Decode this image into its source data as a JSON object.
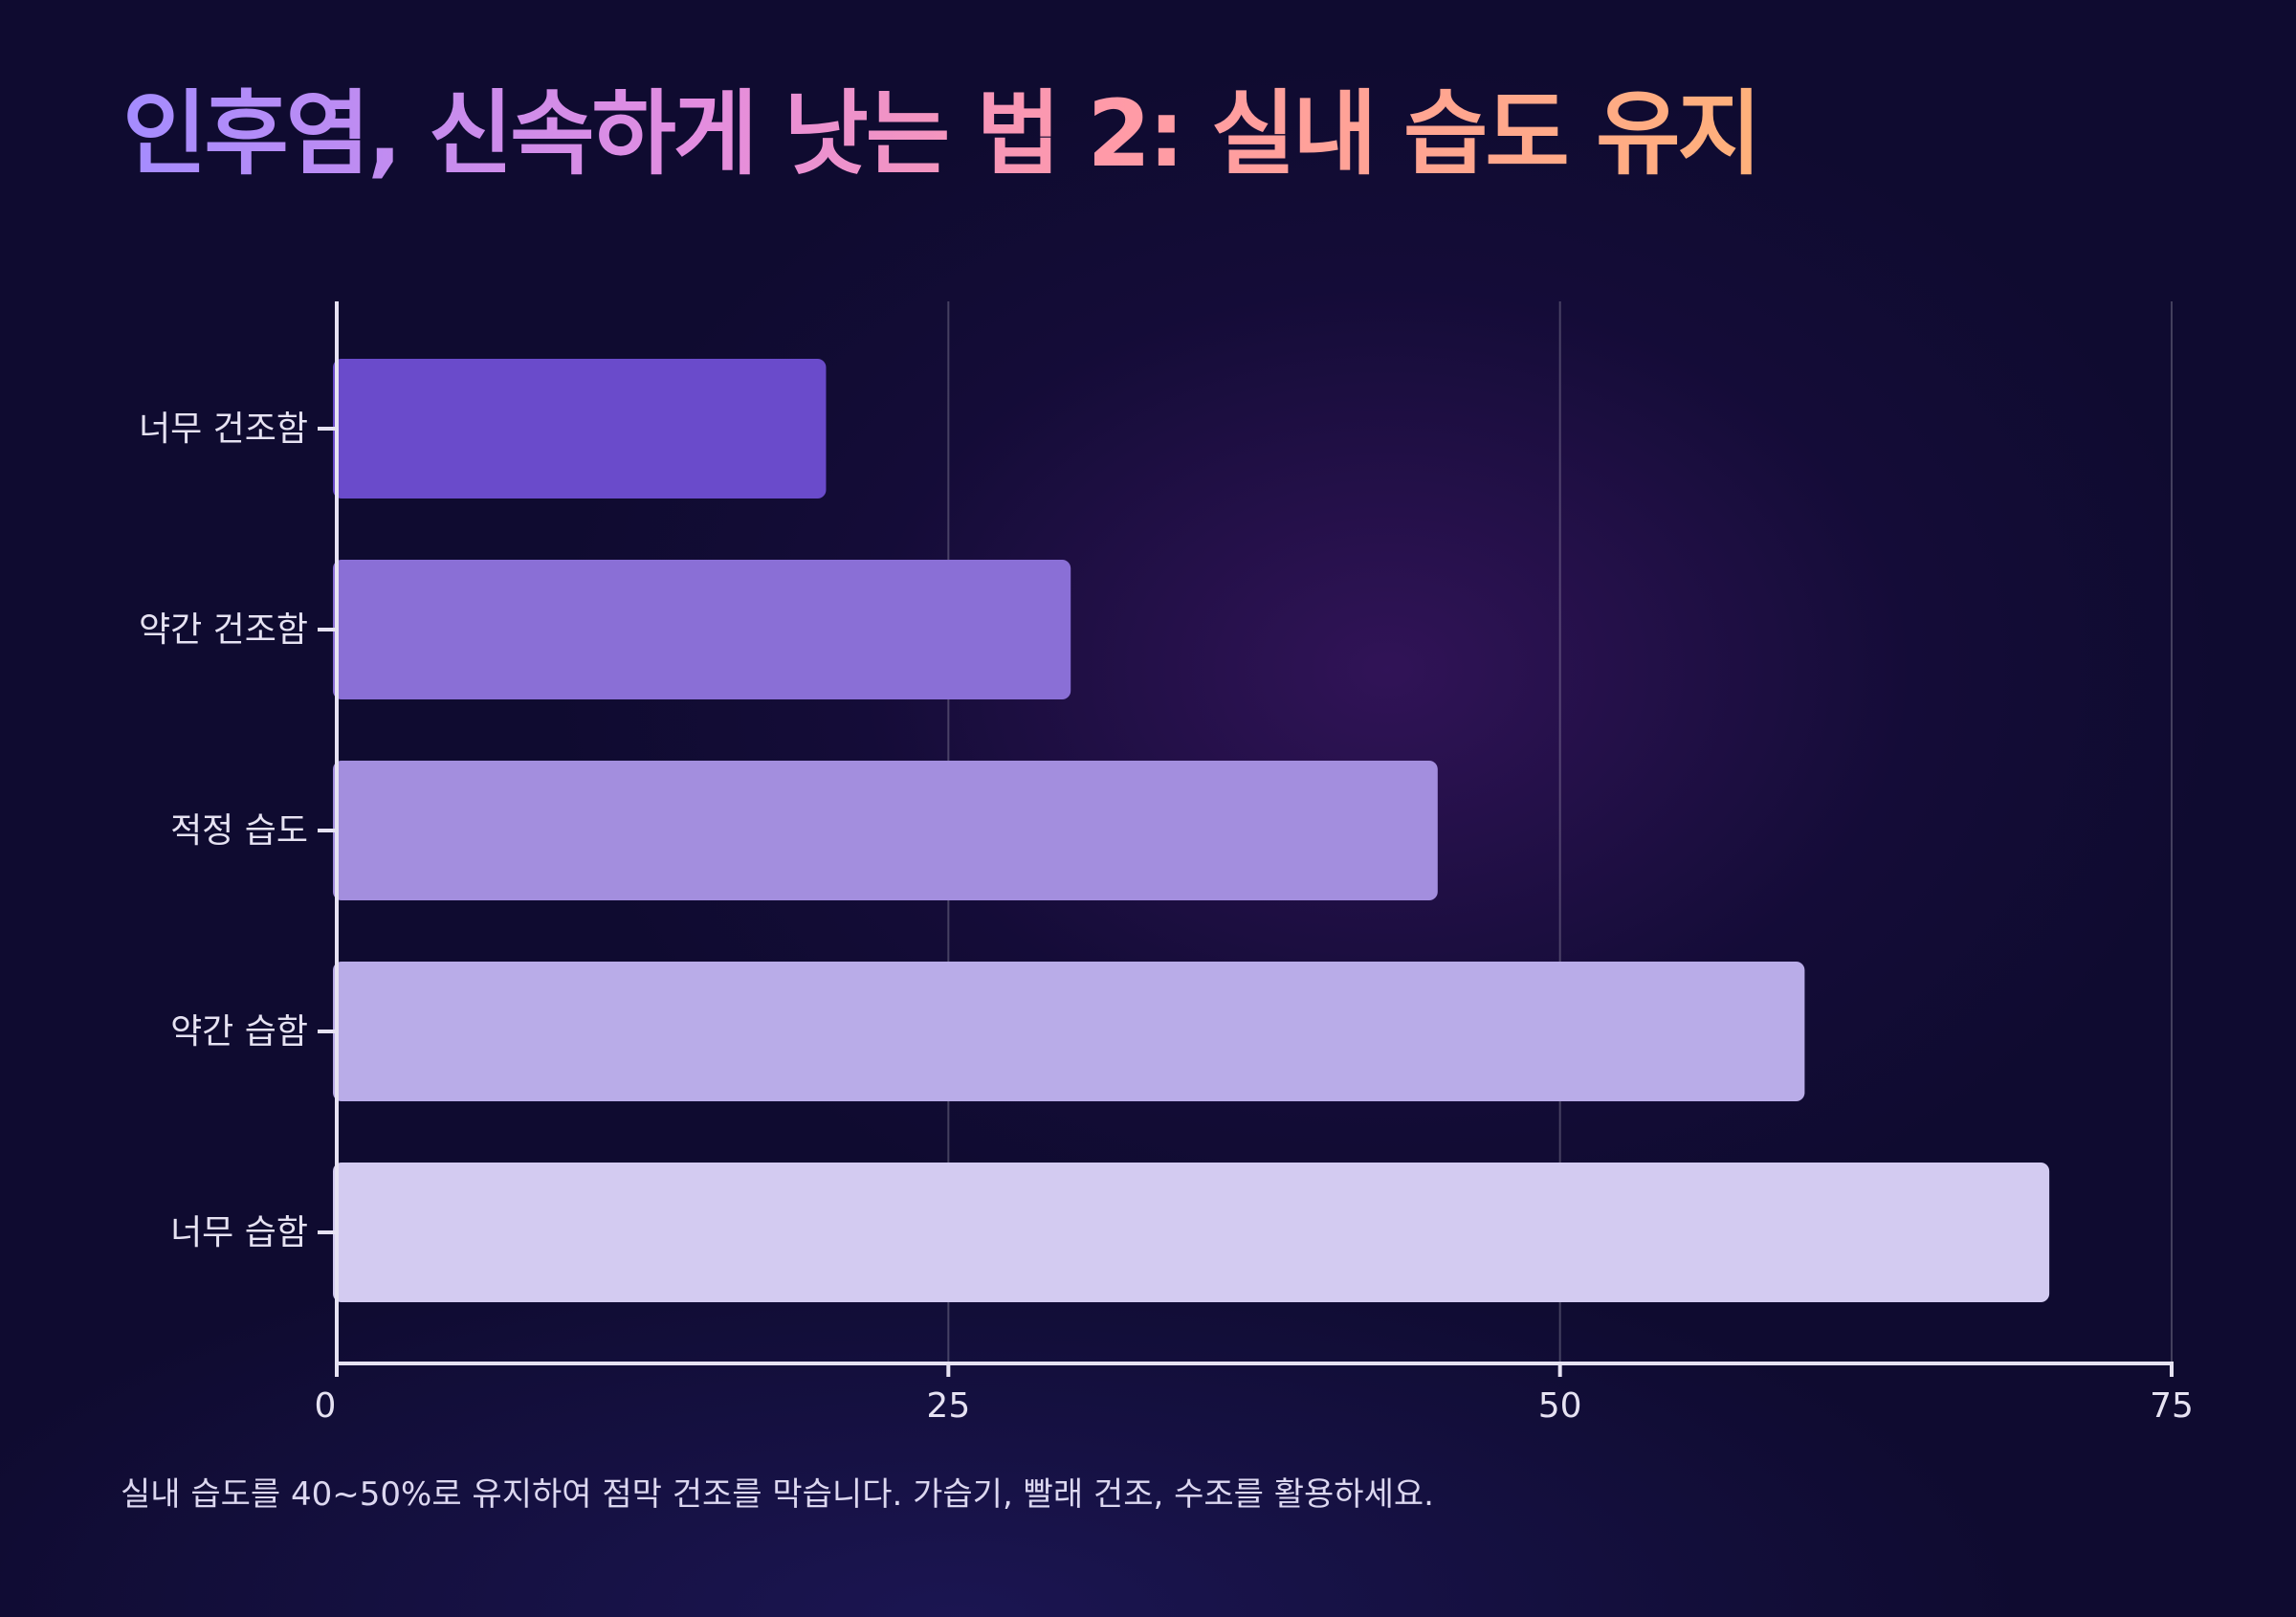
{
  "title": "인후염, 신속하게 낫는 법 2: 실내 습도 유지",
  "note": "실내 습도를 40~50%로 유지하여 점막 건조를 막습니다. 가습기, 빨래 건조, 수조를 활용하세요.",
  "chart_data": {
    "type": "bar",
    "orientation": "horizontal",
    "categories": [
      "너무 건조함",
      "약간 건조함",
      "적정 습도",
      "약간 습함",
      "너무 습함"
    ],
    "values": [
      20,
      30,
      45,
      60,
      70
    ],
    "colors": [
      "#6a4bcb",
      "#8a6fd6",
      "#a38ede",
      "#b9ace8",
      "#d3cbf1"
    ],
    "xlim": [
      0,
      75
    ],
    "xticks": [
      "0",
      "25",
      "50",
      "75"
    ],
    "title": "",
    "xlabel": "",
    "ylabel": "",
    "grid": true,
    "legend": "none"
  }
}
